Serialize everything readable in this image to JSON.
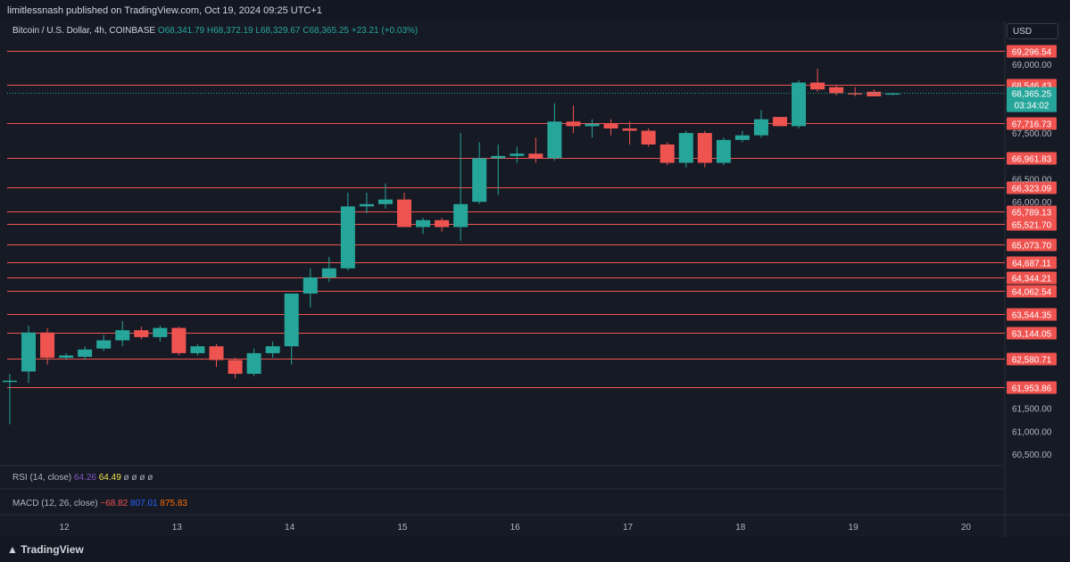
{
  "header": {
    "publisher_line": "limitlessnash published on TradingView.com, Oct 19, 2024 09:25 UTC+1"
  },
  "legend": {
    "symbol": "Bitcoin / U.S. Dollar, 4h, COINBASE",
    "open": "O68,341.79",
    "high": "H68,372.19",
    "low": "L68,329.67",
    "close": "C68,365.25",
    "change": "+23.21 (+0.03%)"
  },
  "currency_button": "USD",
  "indicators": {
    "rsi": {
      "label": "RSI (14, close)",
      "v1": "64.26",
      "v2": "64.49",
      "rest": "ø ø ø ø"
    },
    "macd": {
      "label": "MACD (12, 26, close)",
      "v1": "−68.82",
      "v2": "807.01",
      "v3": "875.83"
    }
  },
  "footer": {
    "brand": "TradingView"
  },
  "colors": {
    "up": "#26a69a",
    "down": "#ef5350",
    "hline": "#ef5350",
    "background": "#161a25",
    "grid": "#1f2330",
    "text": "#b2b5be"
  },
  "chart_data": {
    "type": "candlestick",
    "symbol": "BTC/USD",
    "timeframe": "4h",
    "x_ticks": [
      "12",
      "13",
      "14",
      "15",
      "16",
      "17",
      "18",
      "19",
      "20"
    ],
    "y_ticks": [
      "60,500.00",
      "61,000.00",
      "61,500.00",
      "66,000.00",
      "66,500.00",
      "67,500.00",
      "69,000.00"
    ],
    "horizontal_levels": [
      "69,296.54",
      "68,546.43",
      "67,716.73",
      "66,961.83",
      "66,323.09",
      "65,789.13",
      "65,521.70",
      "65,073.70",
      "64,687.11",
      "64,344.21",
      "64,062.54",
      "63,544.35",
      "63,144.05",
      "62,580.71",
      "61,953.86"
    ],
    "last_price": {
      "value": "68,365.25",
      "countdown": "03:34:02"
    },
    "candles": [
      {
        "t": "Oct 11 20:00",
        "o": 62100,
        "h": 62250,
        "l": 61150,
        "c": 62100,
        "x": 0.2
      },
      {
        "t": "Oct 12 00:00",
        "o": 62300,
        "h": 63300,
        "l": 62050,
        "c": 63150
      },
      {
        "t": "Oct 12 04:00",
        "o": 63150,
        "h": 63250,
        "l": 62450,
        "c": 62600
      },
      {
        "t": "Oct 12 08:00",
        "o": 62600,
        "h": 62700,
        "l": 62550,
        "c": 62650
      },
      {
        "t": "Oct 12 12:00",
        "o": 62620,
        "h": 62850,
        "l": 62550,
        "c": 62780
      },
      {
        "t": "Oct 12 16:00",
        "o": 62800,
        "h": 63100,
        "l": 62750,
        "c": 62980
      },
      {
        "t": "Oct 12 20:00",
        "o": 62980,
        "h": 63400,
        "l": 62850,
        "c": 63200
      },
      {
        "t": "Oct 13 00:00",
        "o": 63200,
        "h": 63280,
        "l": 63000,
        "c": 63050
      },
      {
        "t": "Oct 13 04:00",
        "o": 63050,
        "h": 63300,
        "l": 62950,
        "c": 63250
      },
      {
        "t": "Oct 13 08:00",
        "o": 63250,
        "h": 63280,
        "l": 62650,
        "c": 62700
      },
      {
        "t": "Oct 13 12:00",
        "o": 62700,
        "h": 62900,
        "l": 62650,
        "c": 62850
      },
      {
        "t": "Oct 13 16:00",
        "o": 62850,
        "h": 62900,
        "l": 62400,
        "c": 62550
      },
      {
        "t": "Oct 13 20:00",
        "o": 62550,
        "h": 62600,
        "l": 62150,
        "c": 62250
      },
      {
        "t": "Oct 14 00:00",
        "o": 62250,
        "h": 62800,
        "l": 62200,
        "c": 62700
      },
      {
        "t": "Oct 14 04:00",
        "o": 62700,
        "h": 62950,
        "l": 62600,
        "c": 62850
      },
      {
        "t": "Oct 14 08:00",
        "o": 62850,
        "h": 64000,
        "l": 62450,
        "c": 64000
      },
      {
        "t": "Oct 14 12:00",
        "o": 64000,
        "h": 64550,
        "l": 63700,
        "c": 64350
      },
      {
        "t": "Oct 14 16:00",
        "o": 64350,
        "h": 64800,
        "l": 64250,
        "c": 64550
      },
      {
        "t": "Oct 14 20:00",
        "o": 64550,
        "h": 66200,
        "l": 64500,
        "c": 65900
      },
      {
        "t": "Oct 15 00:00",
        "o": 65900,
        "h": 66200,
        "l": 65750,
        "c": 65950
      },
      {
        "t": "Oct 15 04:00",
        "o": 65950,
        "h": 66400,
        "l": 65850,
        "c": 66050
      },
      {
        "t": "Oct 15 08:00",
        "o": 66050,
        "h": 66200,
        "l": 65450,
        "c": 65450
      },
      {
        "t": "Oct 15 12:00",
        "o": 65450,
        "h": 65650,
        "l": 65300,
        "c": 65600
      },
      {
        "t": "Oct 15 16:00",
        "o": 65600,
        "h": 65650,
        "l": 65350,
        "c": 65450
      },
      {
        "t": "Oct 15 20:00",
        "o": 65450,
        "h": 67500,
        "l": 65150,
        "c": 65950
      },
      {
        "t": "Oct 16 00:00",
        "o": 66000,
        "h": 67300,
        "l": 65950,
        "c": 66950
      },
      {
        "t": "Oct 16 04:00",
        "o": 66950,
        "h": 67250,
        "l": 66150,
        "c": 67000
      },
      {
        "t": "Oct 16 08:00",
        "o": 67000,
        "h": 67200,
        "l": 66850,
        "c": 67050
      },
      {
        "t": "Oct 16 12:00",
        "o": 67050,
        "h": 67400,
        "l": 66850,
        "c": 66950
      },
      {
        "t": "Oct 16 16:00",
        "o": 66950,
        "h": 68150,
        "l": 66900,
        "c": 67750
      },
      {
        "t": "Oct 16 20:00",
        "o": 67750,
        "h": 68100,
        "l": 67500,
        "c": 67650
      },
      {
        "t": "Oct 17 00:00",
        "o": 67650,
        "h": 67800,
        "l": 67400,
        "c": 67700
      },
      {
        "t": "Oct 17 04:00",
        "o": 67700,
        "h": 67800,
        "l": 67450,
        "c": 67600
      },
      {
        "t": "Oct 17 08:00",
        "o": 67600,
        "h": 67750,
        "l": 67250,
        "c": 67550
      },
      {
        "t": "Oct 17 12:00",
        "o": 67550,
        "h": 67600,
        "l": 67200,
        "c": 67250
      },
      {
        "t": "Oct 17 16:00",
        "o": 67250,
        "h": 67300,
        "l": 66800,
        "c": 66850
      },
      {
        "t": "Oct 17 20:00",
        "o": 66850,
        "h": 67550,
        "l": 66750,
        "c": 67500
      },
      {
        "t": "Oct 18 00:00",
        "o": 67500,
        "h": 67550,
        "l": 66750,
        "c": 66850
      },
      {
        "t": "Oct 18 04:00",
        "o": 66850,
        "h": 67400,
        "l": 66800,
        "c": 67350
      },
      {
        "t": "Oct 18 08:00",
        "o": 67350,
        "h": 67550,
        "l": 67300,
        "c": 67450
      },
      {
        "t": "Oct 18 12:00",
        "o": 67450,
        "h": 68000,
        "l": 67400,
        "c": 67800
      },
      {
        "t": "Oct 18 16:00",
        "o": 67850,
        "h": 67850,
        "l": 67650,
        "c": 67650
      },
      {
        "t": "Oct 18 20:00",
        "o": 67650,
        "h": 68650,
        "l": 67600,
        "c": 68600
      },
      {
        "t": "Oct 19 00:00",
        "o": 68600,
        "h": 68900,
        "l": 68400,
        "c": 68450
      },
      {
        "t": "Oct 19 04:00",
        "o": 68500,
        "h": 68550,
        "l": 68320,
        "c": 68370
      },
      {
        "t": "Oct 19 08:00",
        "o": 68370,
        "h": 68500,
        "l": 68300,
        "c": 68350
      },
      {
        "t": "Oct 19 12:00",
        "o": 68400,
        "h": 68450,
        "l": 68300,
        "c": 68300
      },
      {
        "t": "Oct 19 16:00",
        "o": 68341.79,
        "h": 68372.19,
        "l": 68329.67,
        "c": 68365.25
      }
    ]
  }
}
